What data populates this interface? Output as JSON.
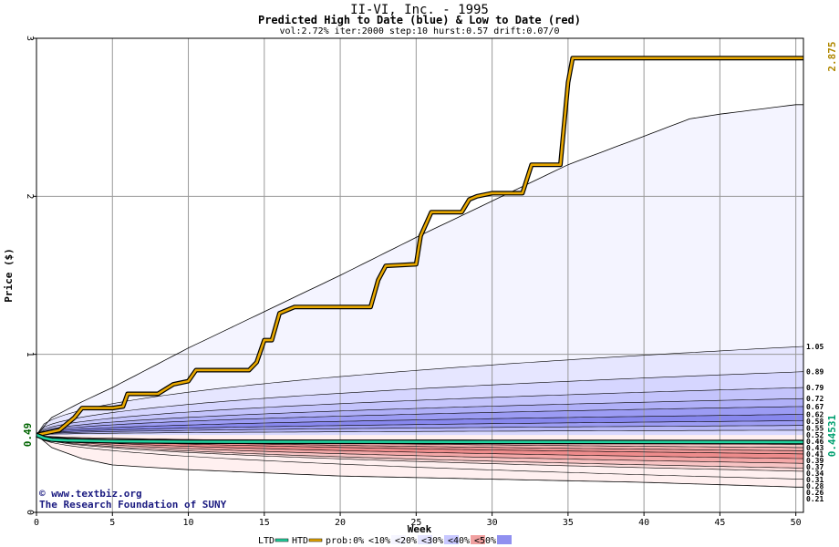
{
  "chart_data": {
    "type": "area",
    "title": "II-VI, Inc. - 1995",
    "subtitle": "Predicted High to Date (blue) &  Low to Date (red)",
    "params": "vol:2.72% iter:2000 step:10 hurst:0.57 drift:0.07/0",
    "xlabel": "Week",
    "ylabel": "Price ($)",
    "xlim": [
      0,
      50.5
    ],
    "ylim": [
      0,
      3
    ],
    "x_ticks": [
      0,
      5,
      10,
      15,
      20,
      25,
      30,
      35,
      40,
      45,
      50
    ],
    "y_ticks": [
      0,
      1,
      2,
      3
    ],
    "grid": true,
    "start_price_label": "0.49",
    "last_price_label": "0.44531",
    "max_label": "2.875",
    "right_labels": [
      "1.05",
      "0.89",
      "0.79",
      "0.72",
      "0.67",
      "0.62",
      "0.58",
      "0.55",
      "0.52",
      "0.46",
      "0.43",
      "0.41",
      "0.39",
      "0.37",
      "0.34",
      "0.31",
      "0.28",
      "0.26",
      "0.21"
    ],
    "envelope": {
      "upper": [
        [
          0,
          0.49
        ],
        [
          1,
          0.6
        ],
        [
          3,
          0.7
        ],
        [
          5,
          0.79
        ],
        [
          10,
          1.04
        ],
        [
          15,
          1.27
        ],
        [
          20,
          1.5
        ],
        [
          25,
          1.74
        ],
        [
          30,
          1.97
        ],
        [
          35,
          2.2
        ],
        [
          40,
          2.38
        ],
        [
          43,
          2.49
        ],
        [
          45,
          2.52
        ],
        [
          50,
          2.58
        ],
        [
          50.5,
          2.58
        ]
      ],
      "lower": [
        [
          0,
          0.49
        ],
        [
          1,
          0.41
        ],
        [
          3,
          0.34
        ],
        [
          5,
          0.3
        ],
        [
          10,
          0.27
        ],
        [
          20,
          0.23
        ],
        [
          30,
          0.21
        ],
        [
          40,
          0.19
        ],
        [
          50,
          0.16
        ],
        [
          50.5,
          0.16
        ]
      ]
    },
    "high_bands_end": [
      1.05,
      0.89,
      0.79,
      0.72,
      0.67,
      0.62,
      0.58,
      0.55,
      0.52
    ],
    "low_bands_end": [
      0.43,
      0.41,
      0.39,
      0.37,
      0.34,
      0.31,
      0.28,
      0.26,
      0.21
    ],
    "series": [
      {
        "name": "HTD",
        "color": "#e8a800",
        "points": [
          [
            0,
            0.49
          ],
          [
            1.5,
            0.52
          ],
          [
            2.5,
            0.6
          ],
          [
            3,
            0.66
          ],
          [
            5,
            0.66
          ],
          [
            5.7,
            0.67
          ],
          [
            6,
            0.75
          ],
          [
            8,
            0.75
          ],
          [
            8.5,
            0.78
          ],
          [
            9,
            0.81
          ],
          [
            10,
            0.83
          ],
          [
            10.5,
            0.9
          ],
          [
            14,
            0.9
          ],
          [
            14.5,
            0.95
          ],
          [
            15,
            1.09
          ],
          [
            15.5,
            1.09
          ],
          [
            16,
            1.26
          ],
          [
            17,
            1.3
          ],
          [
            22,
            1.3
          ],
          [
            22.5,
            1.47
          ],
          [
            23,
            1.56
          ],
          [
            25,
            1.57
          ],
          [
            25.3,
            1.75
          ],
          [
            26,
            1.9
          ],
          [
            28,
            1.9
          ],
          [
            28.5,
            1.98
          ],
          [
            29,
            2.0
          ],
          [
            30,
            2.02
          ],
          [
            32,
            2.02
          ],
          [
            32.6,
            2.2
          ],
          [
            34.5,
            2.2
          ],
          [
            35,
            2.72
          ],
          [
            35.3,
            2.875
          ],
          [
            50.5,
            2.875
          ]
        ]
      },
      {
        "name": "LTD",
        "color": "#22d4a0",
        "points": [
          [
            0,
            0.49
          ],
          [
            0.5,
            0.47
          ],
          [
            1,
            0.46
          ],
          [
            2,
            0.455
          ],
          [
            5,
            0.45
          ],
          [
            10,
            0.447
          ],
          [
            30,
            0.446
          ],
          [
            50.5,
            0.445
          ]
        ]
      }
    ],
    "legend": [
      "LTD",
      "HTD",
      "prob:0%",
      "<10%",
      "<20%",
      "<30%",
      "<40%",
      "<50%"
    ],
    "legend_colors": [
      "#22d4a0",
      "#e8a800",
      "#ffffff",
      "#f5f5ff",
      "#e4e4ff",
      "#c8c8ff",
      "#f0a0a0",
      "#9090f0"
    ]
  },
  "credits": {
    "website": "www.textbiz.org",
    "org": "The Research Foundation of SUNY"
  }
}
